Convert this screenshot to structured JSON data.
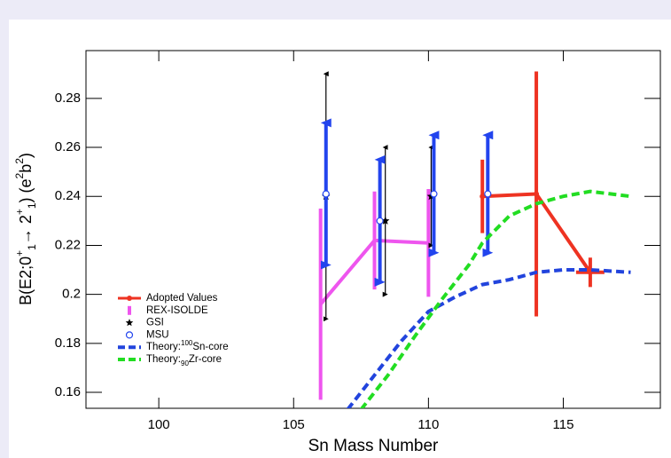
{
  "chart_data": {
    "type": "errorbar",
    "xlabel": "Sn Mass Number",
    "ylabel_parts": [
      {
        "text": "B(E2;0"
      },
      {
        "text": "+",
        "shift": "sup"
      },
      {
        "text": "1",
        "shift": "sub"
      },
      {
        "text": "→ 2"
      },
      {
        "text": "+",
        "shift": "sup"
      },
      {
        "text": "1",
        "shift": "sub"
      },
      {
        "text": ")  (e"
      },
      {
        "text": "2",
        "shift": "sup"
      },
      {
        "text": "b"
      },
      {
        "text": "2",
        "shift": "sup"
      },
      {
        "text": ")"
      }
    ],
    "xlim": [
      97.3,
      118.6
    ],
    "ylim": [
      0.1535,
      0.2995
    ],
    "xticks": [
      100,
      105,
      110,
      115
    ],
    "yticks": [
      0.16,
      0.18,
      0.2,
      0.22,
      0.24,
      0.26,
      0.28
    ],
    "series": [
      {
        "name": "Adopted Values",
        "color": "#ee3322",
        "kind": "line",
        "width": 4,
        "marker": "dot",
        "x": [
          112,
          114,
          116
        ],
        "values": [
          0.24,
          0.241,
          0.209
        ],
        "errors": [
          0.015,
          0.05,
          0.006
        ]
      },
      {
        "name": "REX-ISOLDE",
        "color": "#ee55ee",
        "kind": "line",
        "width": 4,
        "marker": "none",
        "x": [
          106,
          108,
          110
        ],
        "values": [
          0.196,
          0.222,
          0.221
        ],
        "errors": [
          0.039,
          0.02,
          0.022
        ]
      },
      {
        "name": "GSI",
        "color": "#000000",
        "kind": "points",
        "width": 1.2,
        "marker": "star",
        "arrows": true,
        "x": [
          106.2,
          108.4,
          110.1
        ],
        "values": [
          0.24,
          0.23,
          0.24
        ],
        "errors": [
          0.05,
          0.03,
          0.02
        ]
      },
      {
        "name": "MSU",
        "color": "#2244ee",
        "kind": "points",
        "width": 4,
        "marker": "circle",
        "arrows": true,
        "x": [
          106.2,
          108.2,
          110.2,
          112.2
        ],
        "values": [
          0.241,
          0.23,
          0.241,
          0.241
        ],
        "errors": [
          0.029,
          0.025,
          0.024,
          0.024
        ]
      },
      {
        "name": "Theory:",
        "name_sup": "100",
        "name_rest": "Sn-core",
        "color": "#2244dd",
        "kind": "dashed",
        "width": 4,
        "x": [
          107.0,
          108,
          109,
          110,
          111,
          112,
          113,
          114,
          115,
          116,
          117.5
        ],
        "values": [
          0.153,
          0.167,
          0.181,
          0.193,
          0.199,
          0.204,
          0.206,
          0.209,
          0.21,
          0.21,
          0.209
        ]
      },
      {
        "name": "Theory:",
        "name_sub": "90",
        "name_rest": "Zr-core",
        "color": "#22dd22",
        "kind": "dashed",
        "width": 4,
        "x": [
          107.5,
          108.5,
          109.5,
          110.5,
          111.5,
          112,
          113,
          114,
          115,
          116,
          117.5
        ],
        "values": [
          0.153,
          0.167,
          0.183,
          0.198,
          0.212,
          0.221,
          0.232,
          0.237,
          0.24,
          0.242,
          0.24
        ]
      }
    ]
  }
}
